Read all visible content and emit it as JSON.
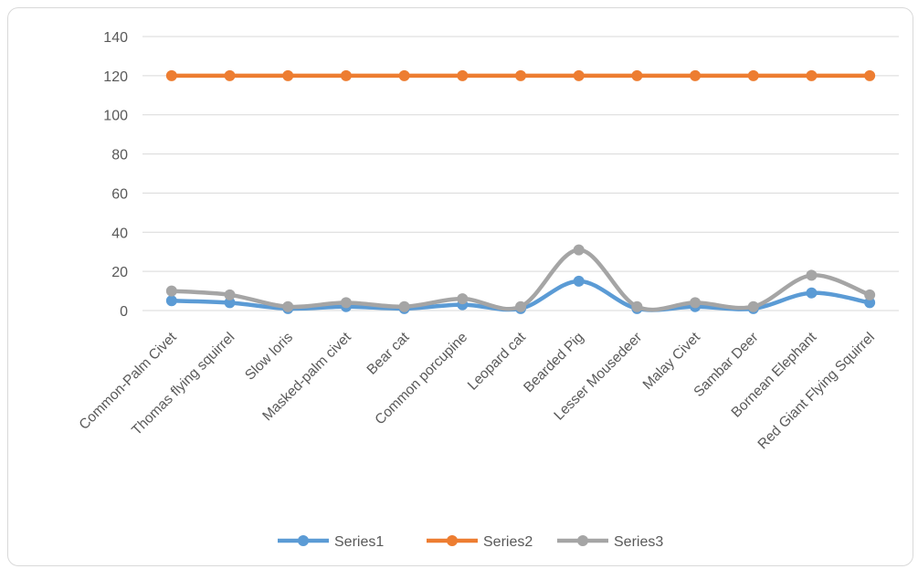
{
  "chart_data": {
    "type": "line",
    "title": "",
    "xlabel": "",
    "ylabel": "",
    "ylim": [
      0,
      140
    ],
    "yticks": [
      0,
      20,
      40,
      60,
      80,
      100,
      120,
      140
    ],
    "grid": true,
    "smooth": true,
    "legend_position": "bottom",
    "categories": [
      "Common-Palm Civet",
      "Thomas flying squirrel",
      "Slow loris",
      "Masked-palm civet",
      "Bear cat",
      "Common porcupine",
      "Leopard cat",
      "Bearded Pig",
      "Lesser Mousedeer",
      "Malay Civet",
      "Sambar Deer",
      "Bornean Elephant",
      "Red Giant Flying Squirrel"
    ],
    "series": [
      {
        "name": "Series1",
        "color": "#5b9bd5",
        "values": [
          5,
          4,
          1,
          2,
          1,
          3,
          1,
          15,
          1,
          2,
          1,
          9,
          4
        ]
      },
      {
        "name": "Series2",
        "color": "#ed7d31",
        "values": [
          120,
          120,
          120,
          120,
          120,
          120,
          120,
          120,
          120,
          120,
          120,
          120,
          120
        ]
      },
      {
        "name": "Series3",
        "color": "#a5a5a5",
        "values": [
          10,
          8,
          2,
          4,
          2,
          6,
          2,
          31,
          2,
          4,
          2,
          18,
          8
        ]
      }
    ]
  }
}
